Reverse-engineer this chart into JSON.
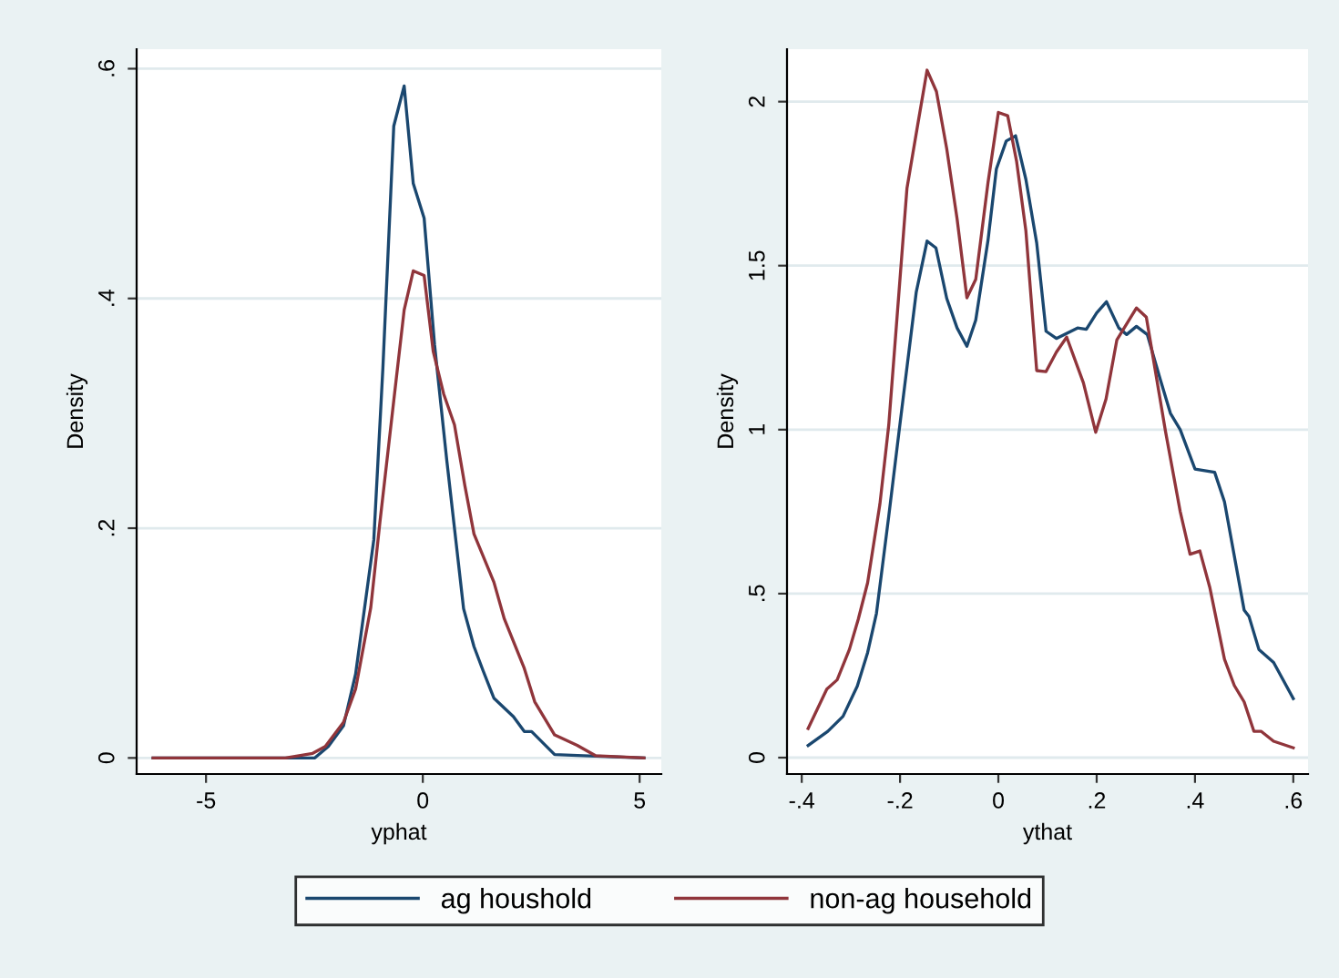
{
  "chart_data": [
    {
      "type": "line",
      "xlabel": "yphat",
      "ylabel": "Density",
      "xlim": [
        -6.6,
        5.5
      ],
      "ylim": [
        -0.014,
        0.617
      ],
      "xticks": [
        -5,
        0,
        5
      ],
      "yticks": [
        {
          "value": 0,
          "label": "0"
        },
        {
          "value": 0.2,
          "label": ".2"
        },
        {
          "value": 0.4,
          "label": ".4"
        },
        {
          "value": 0.6,
          "label": ".6"
        }
      ],
      "grid": "y",
      "legend": "bottom",
      "line_style": "solid",
      "marker": "none",
      "series": [
        {
          "name": "ag houshold",
          "color": "#1a476f",
          "x": [
            -6.22,
            -3.03,
            -2.49,
            -2.18,
            -1.83,
            -1.55,
            -1.13,
            -0.92,
            -0.67,
            -0.43,
            -0.22,
            0.03,
            0.27,
            0.55,
            0.76,
            0.94,
            1.18,
            1.39,
            1.64,
            2.09,
            2.34,
            2.51,
            3.04,
            3.7,
            5.1
          ],
          "values": [
            0,
            0,
            0,
            0.01,
            0.028,
            0.073,
            0.19,
            0.34,
            0.55,
            0.585,
            0.5,
            0.47,
            0.36,
            0.26,
            0.19,
            0.13,
            0.097,
            0.076,
            0.052,
            0.036,
            0.023,
            0.023,
            0.003,
            0.002,
            0
          ]
        },
        {
          "name": "non-ag household",
          "color": "#90353b",
          "x": [
            -6.22,
            -3.17,
            -2.54,
            -2.25,
            -1.83,
            -1.55,
            -1.2,
            -0.99,
            -0.67,
            -0.43,
            -0.22,
            0.03,
            0.24,
            0.48,
            0.73,
            0.97,
            1.18,
            1.64,
            1.88,
            2.34,
            2.58,
            3.04,
            3.56,
            3.98,
            5.1
          ],
          "values": [
            0,
            0,
            0.004,
            0.01,
            0.031,
            0.06,
            0.131,
            0.205,
            0.311,
            0.39,
            0.424,
            0.42,
            0.354,
            0.317,
            0.29,
            0.237,
            0.195,
            0.153,
            0.121,
            0.078,
            0.049,
            0.02,
            0.011,
            0.002,
            0
          ]
        }
      ]
    },
    {
      "type": "line",
      "xlabel": "ythat",
      "ylabel": "Density",
      "xlim": [
        -0.43,
        0.63
      ],
      "ylim": [
        -0.05,
        2.16
      ],
      "xticks": [
        {
          "value": -0.4,
          "label": "-.4"
        },
        {
          "value": -0.2,
          "label": "-.2"
        },
        {
          "value": 0,
          "label": "0"
        },
        {
          "value": 0.2,
          "label": ".2"
        },
        {
          "value": 0.4,
          "label": ".4"
        },
        {
          "value": 0.6,
          "label": ".6"
        }
      ],
      "yticks": [
        {
          "value": 0,
          "label": "0"
        },
        {
          "value": 0.5,
          "label": ".5"
        },
        {
          "value": 1,
          "label": "1"
        },
        {
          "value": 1.5,
          "label": "1.5"
        },
        {
          "value": 2,
          "label": "2"
        }
      ],
      "grid": "y",
      "line_style": "solid",
      "marker": "none",
      "series": [
        {
          "color": "#1a476f",
          "x": [
            -0.387,
            -0.347,
            -0.316,
            -0.287,
            -0.266,
            -0.248,
            -0.223,
            -0.202,
            -0.167,
            -0.145,
            -0.127,
            -0.105,
            -0.084,
            -0.064,
            -0.046,
            -0.021,
            -0.004,
            0.016,
            0.035,
            0.056,
            0.078,
            0.097,
            0.118,
            0.161,
            0.179,
            0.2,
            0.22,
            0.245,
            0.261,
            0.281,
            0.303,
            0.33,
            0.35,
            0.37,
            0.4,
            0.44,
            0.46,
            0.5,
            0.51,
            0.53,
            0.56,
            0.6
          ],
          "values": [
            0.037,
            0.08,
            0.126,
            0.218,
            0.32,
            0.44,
            0.736,
            0.995,
            1.42,
            1.575,
            1.554,
            1.4,
            1.31,
            1.254,
            1.334,
            1.578,
            1.795,
            1.88,
            1.896,
            1.763,
            1.569,
            1.3,
            1.278,
            1.31,
            1.306,
            1.356,
            1.39,
            1.31,
            1.29,
            1.315,
            1.29,
            1.15,
            1.05,
            1.0,
            0.88,
            0.87,
            0.78,
            0.45,
            0.43,
            0.33,
            0.29,
            0.18
          ]
        },
        {
          "color": "#90353b",
          "x": [
            -0.387,
            -0.349,
            -0.328,
            -0.303,
            -0.285,
            -0.266,
            -0.241,
            -0.223,
            -0.186,
            -0.163,
            -0.145,
            -0.126,
            -0.105,
            -0.084,
            -0.064,
            -0.046,
            -0.021,
            0,
            0.019,
            0.037,
            0.056,
            0.078,
            0.097,
            0.118,
            0.139,
            0.173,
            0.198,
            0.219,
            0.241,
            0.281,
            0.301,
            0.34,
            0.37,
            0.39,
            0.41,
            0.43,
            0.46,
            0.48,
            0.5,
            0.52,
            0.535,
            0.56,
            0.6
          ],
          "values": [
            0.089,
            0.209,
            0.237,
            0.33,
            0.422,
            0.533,
            0.773,
            1.014,
            1.735,
            1.939,
            2.096,
            2.031,
            1.856,
            1.643,
            1.402,
            1.458,
            1.754,
            1.967,
            1.957,
            1.819,
            1.606,
            1.18,
            1.177,
            1.236,
            1.282,
            1.143,
            0.992,
            1.093,
            1.273,
            1.371,
            1.343,
            0.995,
            0.75,
            0.62,
            0.63,
            0.52,
            0.3,
            0.22,
            0.17,
            0.08,
            0.08,
            0.05,
            0.03
          ]
        }
      ]
    }
  ]
}
